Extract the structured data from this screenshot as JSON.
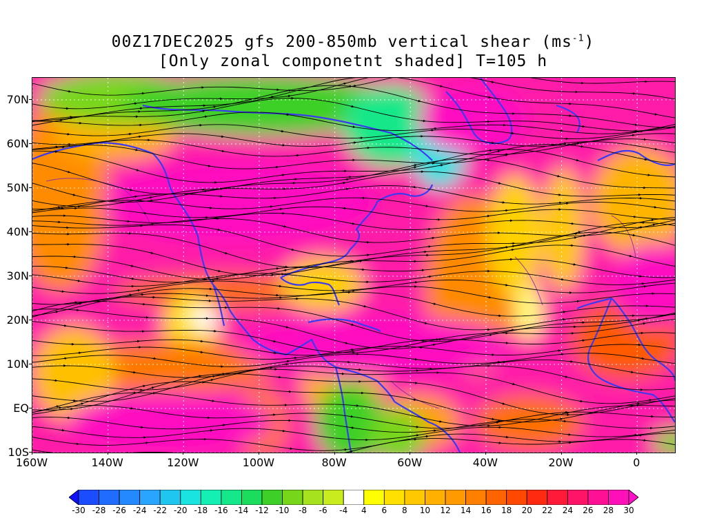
{
  "title": {
    "line1": "00Z17DEC2025 gfs 200-850mb vertical shear (ms",
    "line1_sup": "-1",
    "line1_end": ")",
    "line2": "[Only zonal componetnt shaded] T=105 h"
  },
  "map": {
    "lon_range": [
      -160,
      10
    ],
    "lat_range": [
      -10,
      75
    ],
    "lat_labels": [
      "70N",
      "60N",
      "50N",
      "40N",
      "30N",
      "20N",
      "10N",
      "EQ",
      "10S"
    ],
    "lat_values": [
      70,
      60,
      50,
      40,
      30,
      20,
      10,
      0,
      -10
    ],
    "lon_labels": [
      "160W",
      "140W",
      "120W",
      "100W",
      "80W",
      "60W",
      "40W",
      "20W",
      "0"
    ],
    "lon_values": [
      -160,
      -140,
      -120,
      -100,
      -80,
      -60,
      -40,
      -20,
      0
    ]
  },
  "colorbar": {
    "labels": [
      "-30",
      "-28",
      "-26",
      "-24",
      "-22",
      "-20",
      "-18",
      "-16",
      "-14",
      "-12",
      "-10",
      "-8",
      "-6",
      "-4",
      "4",
      "6",
      "8",
      "10",
      "12",
      "14",
      "16",
      "18",
      "20",
      "22",
      "24",
      "26",
      "28",
      "30"
    ],
    "colors": [
      "#1010ff",
      "#1a4dff",
      "#1f6cff",
      "#2488ff",
      "#29a4ff",
      "#1fc6f0",
      "#19e4e0",
      "#14f0b4",
      "#14e88a",
      "#1cdc5e",
      "#3ed028",
      "#78d61a",
      "#a6e21e",
      "#c8ec1e",
      "#ffffff",
      "#ffff00",
      "#ffe000",
      "#ffc800",
      "#ffb000",
      "#ff9a00",
      "#ff8000",
      "#ff6400",
      "#ff4800",
      "#ff2a10",
      "#ff1a3a",
      "#ff1468",
      "#ff1095",
      "#ff10b8",
      "#ff10c8"
    ]
  }
}
